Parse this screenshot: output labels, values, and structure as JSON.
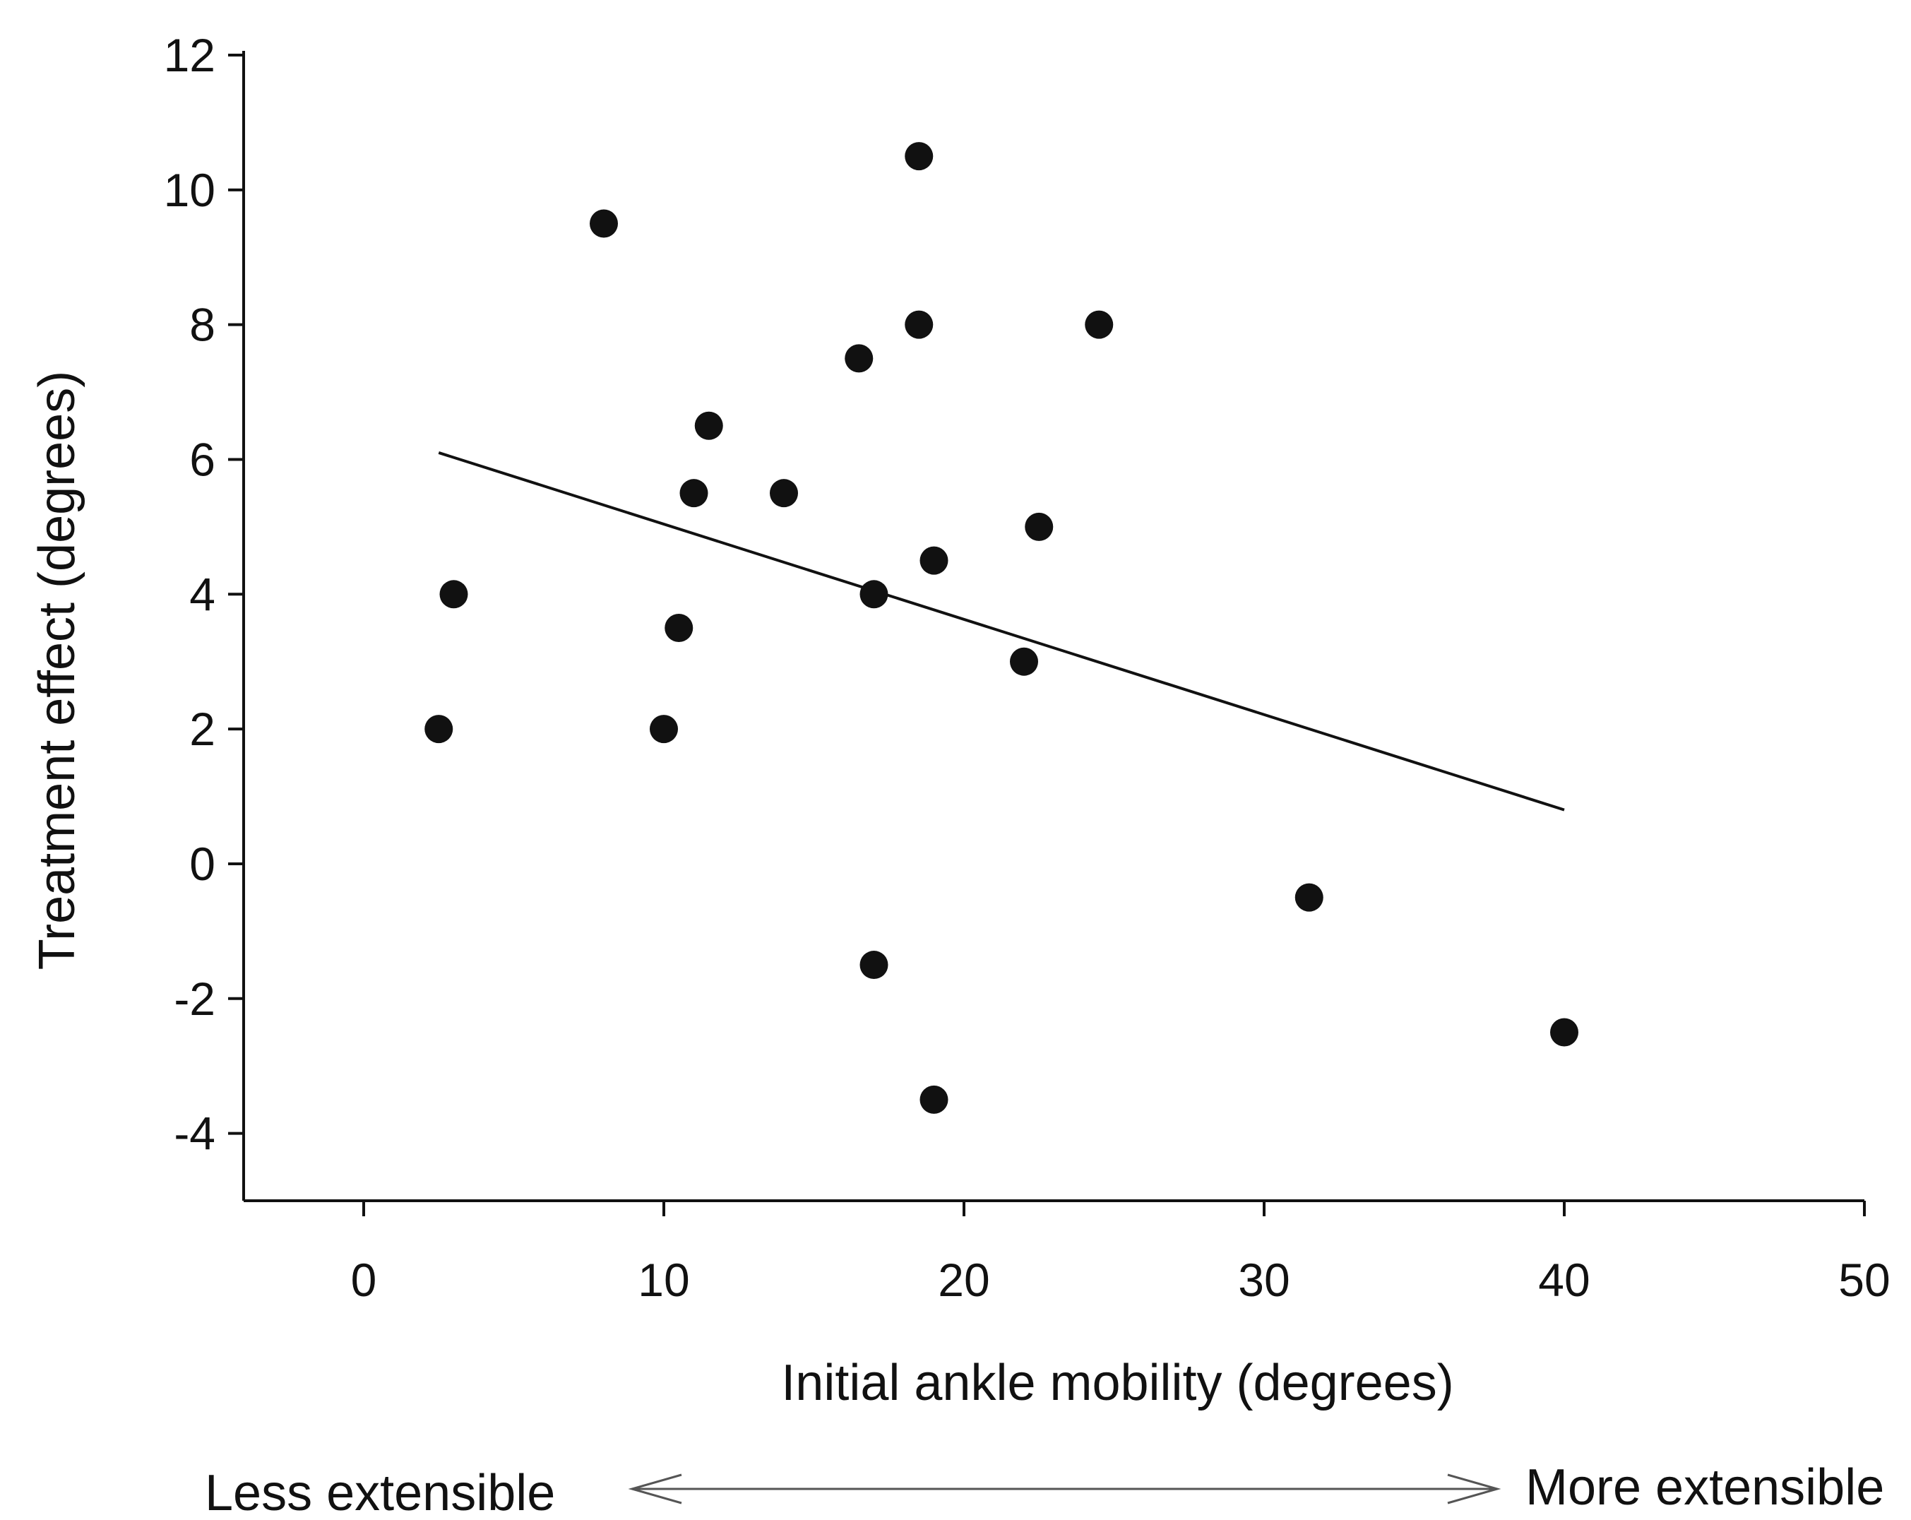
{
  "chart_data": {
    "type": "scatter",
    "title": "",
    "xlabel": "Initial ankle mobility (degrees)",
    "ylabel": "Treatment effect (degrees)",
    "xlim": [
      -4,
      50
    ],
    "ylim": [
      -5,
      12
    ],
    "xticks": [
      "0",
      "10",
      "20",
      "30",
      "40",
      "50"
    ],
    "yticks": [
      "12",
      "10",
      "8",
      "6",
      "4",
      "2",
      "0",
      "-2",
      "-4"
    ],
    "grid": false,
    "legend": "none",
    "marker_color": "#111111",
    "points": [
      {
        "x": 2.5,
        "y": 2
      },
      {
        "x": 3,
        "y": 4
      },
      {
        "x": 8,
        "y": 9.5
      },
      {
        "x": 10,
        "y": 2
      },
      {
        "x": 10.5,
        "y": 3.5
      },
      {
        "x": 11,
        "y": 5.5
      },
      {
        "x": 11.5,
        "y": 6.5
      },
      {
        "x": 14,
        "y": 5.5
      },
      {
        "x": 16.5,
        "y": 7.5
      },
      {
        "x": 17,
        "y": 4
      },
      {
        "x": 17,
        "y": -1.5
      },
      {
        "x": 18.5,
        "y": 10.5
      },
      {
        "x": 18.5,
        "y": 8
      },
      {
        "x": 19,
        "y": 4.5
      },
      {
        "x": 19,
        "y": -3.5
      },
      {
        "x": 22,
        "y": 3
      },
      {
        "x": 22.5,
        "y": 5
      },
      {
        "x": 24.5,
        "y": 8
      },
      {
        "x": 31.5,
        "y": -0.5
      },
      {
        "x": 40,
        "y": -2.5
      }
    ],
    "trend_line": {
      "x": [
        2.5,
        40
      ],
      "y": [
        6.1,
        0.8
      ]
    },
    "extensibility_scale": {
      "left_label": "Less extensible",
      "right_label": "More extensible"
    }
  }
}
